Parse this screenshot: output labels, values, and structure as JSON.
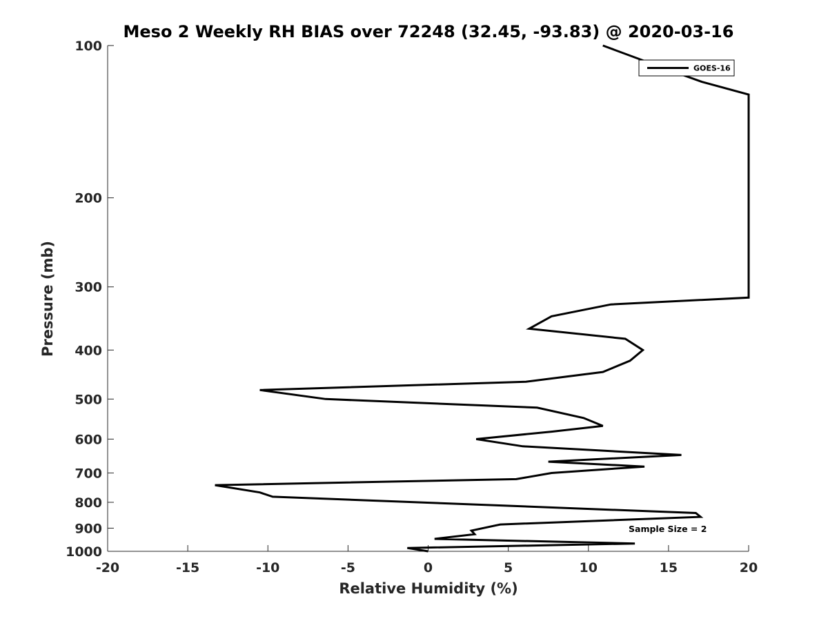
{
  "chart_data": {
    "type": "line",
    "title": "Meso 2 Weekly RH BIAS over 72248 (32.45, -93.83) @ 2020-03-16",
    "xlabel": "Relative Humidity (%)",
    "ylabel": "Pressure (mb)",
    "xlim": [
      -20,
      20
    ],
    "ylim": [
      1000,
      100
    ],
    "y_scale": "log",
    "y_reversed": true,
    "xticks": [
      "-20",
      "-15",
      "-10",
      "-5",
      "0",
      "5",
      "10",
      "15",
      "20"
    ],
    "yticks": [
      "100",
      "200",
      "300",
      "400",
      "500",
      "600",
      "700",
      "800",
      "900",
      "1000"
    ],
    "grid": false,
    "legend_position": "top-right",
    "annotation": "Sample Size = 2",
    "series": [
      {
        "name": "GOES-16",
        "color": "#000000",
        "points": [
          {
            "x": 0,
            "y": 1000
          },
          {
            "x": -1.3,
            "y": 985
          },
          {
            "x": 12.9,
            "y": 965
          },
          {
            "x": 0.4,
            "y": 945
          },
          {
            "x": 2.9,
            "y": 925
          },
          {
            "x": 2.7,
            "y": 910
          },
          {
            "x": 4.5,
            "y": 885
          },
          {
            "x": 17,
            "y": 855
          },
          {
            "x": 16.7,
            "y": 840
          },
          {
            "x": -9.7,
            "y": 780
          },
          {
            "x": -10.5,
            "y": 765
          },
          {
            "x": -13.3,
            "y": 740
          },
          {
            "x": 5.5,
            "y": 720
          },
          {
            "x": 7.7,
            "y": 700
          },
          {
            "x": 13.5,
            "y": 680
          },
          {
            "x": 7.5,
            "y": 665
          },
          {
            "x": 15.8,
            "y": 645
          },
          {
            "x": 5.9,
            "y": 620
          },
          {
            "x": 3,
            "y": 600
          },
          {
            "x": 7.7,
            "y": 580
          },
          {
            "x": 10.9,
            "y": 565
          },
          {
            "x": 9.7,
            "y": 545
          },
          {
            "x": 6.8,
            "y": 520
          },
          {
            "x": -6.4,
            "y": 500
          },
          {
            "x": -10.5,
            "y": 480
          },
          {
            "x": 6.1,
            "y": 462
          },
          {
            "x": 10.9,
            "y": 442
          },
          {
            "x": 12.6,
            "y": 420
          },
          {
            "x": 13.4,
            "y": 400
          },
          {
            "x": 12.3,
            "y": 380
          },
          {
            "x": 6.3,
            "y": 363
          },
          {
            "x": 7.7,
            "y": 343
          },
          {
            "x": 11.4,
            "y": 325
          },
          {
            "x": 20,
            "y": 315
          },
          {
            "x": 20,
            "y": 125
          },
          {
            "x": 17.1,
            "y": 118
          },
          {
            "x": 15.1,
            "y": 112
          },
          {
            "x": 10.9,
            "y": 100
          }
        ]
      }
    ]
  }
}
